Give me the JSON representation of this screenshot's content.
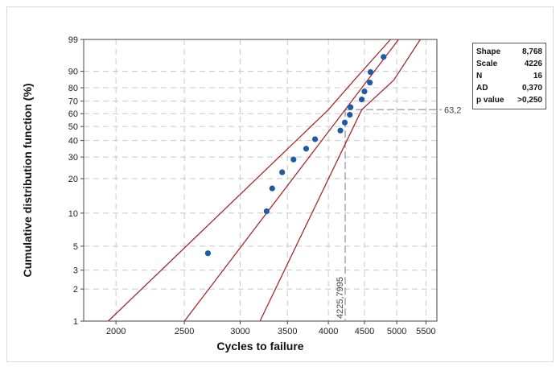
{
  "chart_data": {
    "type": "scatter",
    "title": "",
    "xlabel": "Cycles to failure",
    "ylabel": "Cumulative distribution function (%)",
    "xscale": "log",
    "yscale": "weibull-probability",
    "xlim": [
      1800,
      5700
    ],
    "ylim": [
      1,
      99
    ],
    "x_ticks": [
      2000,
      2500,
      3000,
      3500,
      4000,
      4500,
      5000,
      5500
    ],
    "y_ticks": [
      1,
      2,
      3,
      5,
      10,
      20,
      30,
      40,
      50,
      60,
      70,
      80,
      90,
      99
    ],
    "grid": true,
    "colors": {
      "points": "#1f5aa6",
      "fit_lines": "#a52a2a",
      "reference": "#999999"
    },
    "points": [
      {
        "x": 2700,
        "y": 4.3
      },
      {
        "x": 3270,
        "y": 10.4
      },
      {
        "x": 3330,
        "y": 16.5
      },
      {
        "x": 3440,
        "y": 22.6
      },
      {
        "x": 3570,
        "y": 28.7
      },
      {
        "x": 3720,
        "y": 34.8
      },
      {
        "x": 3830,
        "y": 40.9
      },
      {
        "x": 4160,
        "y": 47.0
      },
      {
        "x": 4220,
        "y": 53.0
      },
      {
        "x": 4290,
        "y": 59.1
      },
      {
        "x": 4300,
        "y": 65.2
      },
      {
        "x": 4460,
        "y": 71.3
      },
      {
        "x": 4500,
        "y": 77.4
      },
      {
        "x": 4580,
        "y": 83.5
      },
      {
        "x": 4590,
        "y": 89.6
      },
      {
        "x": 4790,
        "y": 95.7
      }
    ],
    "fit": {
      "shape": 8.768,
      "scale": 4226
    },
    "ci_lower": [
      {
        "x": 1950,
        "y": 1
      },
      {
        "x": 4000,
        "y": 63.2
      },
      {
        "x": 4350,
        "y": 85
      },
      {
        "x": 4900,
        "y": 99
      }
    ],
    "ci_upper": [
      {
        "x": 3200,
        "y": 1
      },
      {
        "x": 4460,
        "y": 63.2
      },
      {
        "x": 4950,
        "y": 85
      },
      {
        "x": 5400,
        "y": 99
      }
    ],
    "reference": {
      "x": 4225.7995,
      "y": 63.2,
      "x_label": "4225,7995",
      "y_label": "63,2"
    }
  },
  "stats": [
    {
      "label": "Shape",
      "value": "8,768"
    },
    {
      "label": "Scale",
      "value": "4226"
    },
    {
      "label": "N",
      "value": "16"
    },
    {
      "label": "AD",
      "value": "0,370"
    },
    {
      "label": "p value",
      "value": ">0,250"
    }
  ]
}
